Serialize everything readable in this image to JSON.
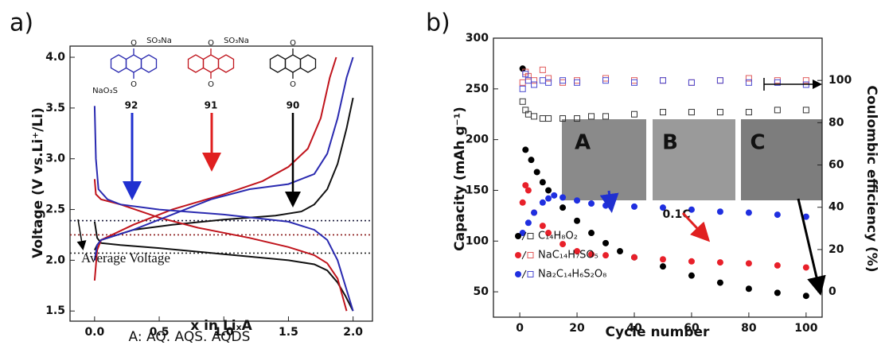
{
  "chart_data": [
    {
      "type": "line",
      "panel_label": "a)",
      "xlabel": "x in LiₓA",
      "ylabel": "Voltage (V vs.Li⁺/Li)",
      "caption": "A: AQ. AQS. AQDS",
      "xlim": [
        -0.19,
        2.15
      ],
      "ylim": [
        1.4,
        4.11
      ],
      "xticks": [
        {
          "value": 0,
          "label": "0.0"
        },
        0.5,
        {
          "value": 1,
          "label": "1.0"
        },
        1.5,
        {
          "value": 2,
          "label": "2.0"
        }
      ],
      "yticks": [
        1.5,
        {
          "value": 2,
          "label": "2.0"
        },
        2.5,
        {
          "value": 3,
          "label": "3.0"
        },
        3.5,
        {
          "value": 4,
          "label": "4.0"
        }
      ],
      "hlines": [
        {
          "value": 2.39,
          "color": "#1a1a3a"
        },
        {
          "value": 2.25,
          "color": "#8b1a1a"
        },
        {
          "value": 2.07,
          "color": "#222222"
        }
      ],
      "annotations": [
        "92",
        "91",
        "90",
        "SO₃Na",
        "NaO₃S",
        "SO₃Na",
        "O",
        "O",
        "O",
        "O",
        "O",
        "O",
        "Average Voltage"
      ],
      "series": [
        {
          "color": "#111111",
          "x": [
            0,
            0.02,
            0.05,
            0.2,
            0.5,
            1.0,
            1.5,
            1.7,
            1.8,
            1.88,
            1.94,
            2.0
          ],
          "values": [
            2.38,
            2.22,
            2.17,
            2.15,
            2.12,
            2.06,
            2.0,
            1.96,
            1.9,
            1.78,
            1.65,
            1.5
          ]
        },
        {
          "color": "#111111",
          "x": [
            0,
            0.02,
            0.05,
            0.3,
            0.6,
            1.0,
            1.4,
            1.6,
            1.7,
            1.8,
            1.88,
            1.95,
            2.0
          ],
          "values": [
            2.1,
            2.15,
            2.2,
            2.3,
            2.35,
            2.4,
            2.44,
            2.48,
            2.55,
            2.7,
            2.95,
            3.3,
            3.6
          ]
        },
        {
          "color": "#c0141c",
          "x": [
            0,
            0.01,
            0.05,
            0.2,
            0.5,
            0.8,
            1.2,
            1.5,
            1.7,
            1.8,
            1.88,
            1.95
          ],
          "values": [
            2.8,
            2.65,
            2.6,
            2.55,
            2.42,
            2.32,
            2.22,
            2.13,
            2.05,
            1.97,
            1.82,
            1.5
          ]
        },
        {
          "color": "#c0141c",
          "x": [
            0,
            0.02,
            0.05,
            0.3,
            0.6,
            1.0,
            1.3,
            1.5,
            1.65,
            1.75,
            1.82,
            1.87
          ],
          "values": [
            1.8,
            2.1,
            2.2,
            2.35,
            2.5,
            2.65,
            2.78,
            2.92,
            3.1,
            3.4,
            3.8,
            4.0
          ]
        },
        {
          "color": "#2a2ab0",
          "x": [
            0,
            0.01,
            0.03,
            0.1,
            0.2,
            0.5,
            1.0,
            1.5,
            1.7,
            1.8,
            1.88,
            1.94,
            2.0
          ],
          "values": [
            3.52,
            3.0,
            2.7,
            2.6,
            2.55,
            2.5,
            2.45,
            2.38,
            2.3,
            2.2,
            2.0,
            1.75,
            1.5
          ]
        },
        {
          "color": "#2a2ab0",
          "x": [
            0,
            0.02,
            0.05,
            0.3,
            0.6,
            0.9,
            1.2,
            1.5,
            1.7,
            1.8,
            1.88,
            1.95,
            2.0
          ],
          "values": [
            2.0,
            2.15,
            2.2,
            2.3,
            2.45,
            2.6,
            2.7,
            2.75,
            2.85,
            3.05,
            3.4,
            3.8,
            4.0
          ]
        }
      ]
    },
    {
      "type": "scatter",
      "panel_label": "b)",
      "xlabel": "Cycle number",
      "ylabel": "Capacity (mAh g⁻¹)",
      "y2label": "Coulombic efficiency (%)",
      "xlim": [
        -9.2,
        105.6
      ],
      "ylim": [
        25,
        300
      ],
      "y2lim": [
        -12,
        120
      ],
      "xticks": [
        0,
        20,
        40,
        60,
        80,
        100
      ],
      "yticks": [
        50,
        100,
        150,
        200,
        250,
        300
      ],
      "y2ticks": [
        0,
        20,
        40,
        60,
        80,
        100
      ],
      "annotations": [
        "A",
        "B",
        "C",
        "0.1C"
      ],
      "series": [
        {
          "name": "C₁₄H₈O₂",
          "color": "#000000",
          "marker": "circle",
          "x": [
            1,
            2,
            4,
            6,
            8,
            10,
            15,
            20,
            25,
            30,
            35,
            40,
            50,
            60,
            70,
            80,
            90,
            100
          ],
          "values": [
            270,
            190,
            180,
            168,
            158,
            150,
            133,
            120,
            108,
            98,
            90,
            84,
            75,
            66,
            59,
            53,
            49,
            46
          ]
        },
        {
          "name": "NaC₁₄H₇SO₅",
          "color": "#e8202a",
          "marker": "circle",
          "x": [
            1,
            2,
            3,
            5,
            8,
            10,
            15,
            20,
            25,
            30,
            40,
            50,
            60,
            70,
            80,
            90,
            100
          ],
          "values": [
            138,
            155,
            150,
            128,
            115,
            108,
            97,
            90,
            87,
            86,
            84,
            82,
            80,
            79,
            78,
            76,
            74
          ]
        },
        {
          "name": "Na₂C₁₄H₆S₂O₈",
          "color": "#1f2fe0",
          "marker": "circle",
          "x": [
            1,
            3,
            5,
            8,
            10,
            12,
            15,
            20,
            25,
            30,
            40,
            50,
            60,
            70,
            80,
            90,
            100
          ],
          "values": [
            108,
            118,
            128,
            138,
            142,
            145,
            143,
            140,
            137,
            135,
            134,
            133,
            131,
            129,
            128,
            126,
            124
          ]
        },
        {
          "color": "#333333",
          "marker": "square",
          "axis": "y2",
          "x": [
            1,
            2,
            3,
            5,
            8,
            10,
            15,
            20,
            25,
            30,
            40,
            50,
            60,
            70,
            80,
            90,
            100
          ],
          "values": [
            90,
            86,
            84,
            83,
            82,
            82,
            82,
            82,
            83,
            83,
            84,
            85,
            85,
            85,
            85,
            86,
            86
          ]
        },
        {
          "color": "#e05a5a",
          "marker": "square",
          "axis": "y2",
          "x": [
            1,
            2,
            3,
            5,
            8,
            10,
            15,
            20,
            30,
            40,
            50,
            60,
            70,
            80,
            90,
            100
          ],
          "values": [
            99,
            104,
            102,
            100,
            105,
            101,
            99,
            100,
            101,
            100,
            100,
            99,
            100,
            101,
            100,
            100
          ]
        },
        {
          "color": "#4a4ad0",
          "marker": "square",
          "axis": "y2",
          "x": [
            1,
            2,
            3,
            5,
            8,
            10,
            15,
            20,
            30,
            40,
            50,
            60,
            70,
            80,
            90,
            100
          ],
          "values": [
            96,
            103,
            100,
            98,
            100,
            99,
            100,
            99,
            100,
            99,
            100,
            99,
            100,
            99,
            99,
            98
          ]
        }
      ]
    }
  ]
}
